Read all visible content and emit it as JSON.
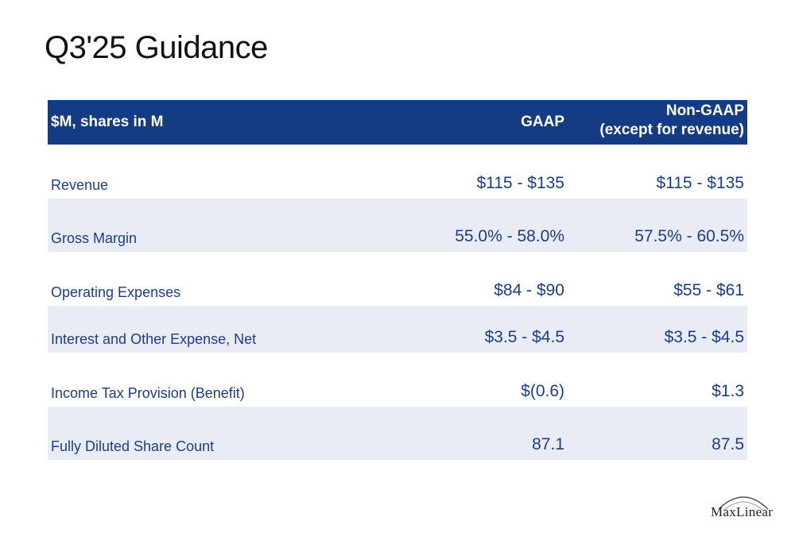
{
  "title": "Q3'25 Guidance",
  "table": {
    "header": {
      "col0": "$M, shares in M",
      "col1": "GAAP",
      "col2_line1": "Non-GAAP",
      "col2_line2": "(except for revenue)"
    },
    "rows": [
      {
        "label": "Revenue",
        "gaap": "$115 - $135",
        "non_gaap": "$115 - $135"
      },
      {
        "label": "Gross Margin",
        "gaap": "55.0% - 58.0%",
        "non_gaap": "57.5% - 60.5%"
      },
      {
        "label": "Operating Expenses",
        "gaap": "$84 - $90",
        "non_gaap": "$55 - $61"
      },
      {
        "label": "Interest and Other Expense, Net",
        "gaap": "$3.5 - $4.5",
        "non_gaap": "$3.5 - $4.5"
      },
      {
        "label": "Income Tax Provision (Benefit)",
        "gaap": "$(0.6)",
        "non_gaap": "$1.3"
      },
      {
        "label": "Fully Diluted Share Count",
        "gaap": "87.1",
        "non_gaap": "87.5"
      }
    ]
  },
  "logo": {
    "text": "MaxLinear"
  },
  "colors": {
    "header_bg": "#133c84",
    "row_text": "#1a3e8c",
    "shaded_row": "#e9ebf5"
  }
}
